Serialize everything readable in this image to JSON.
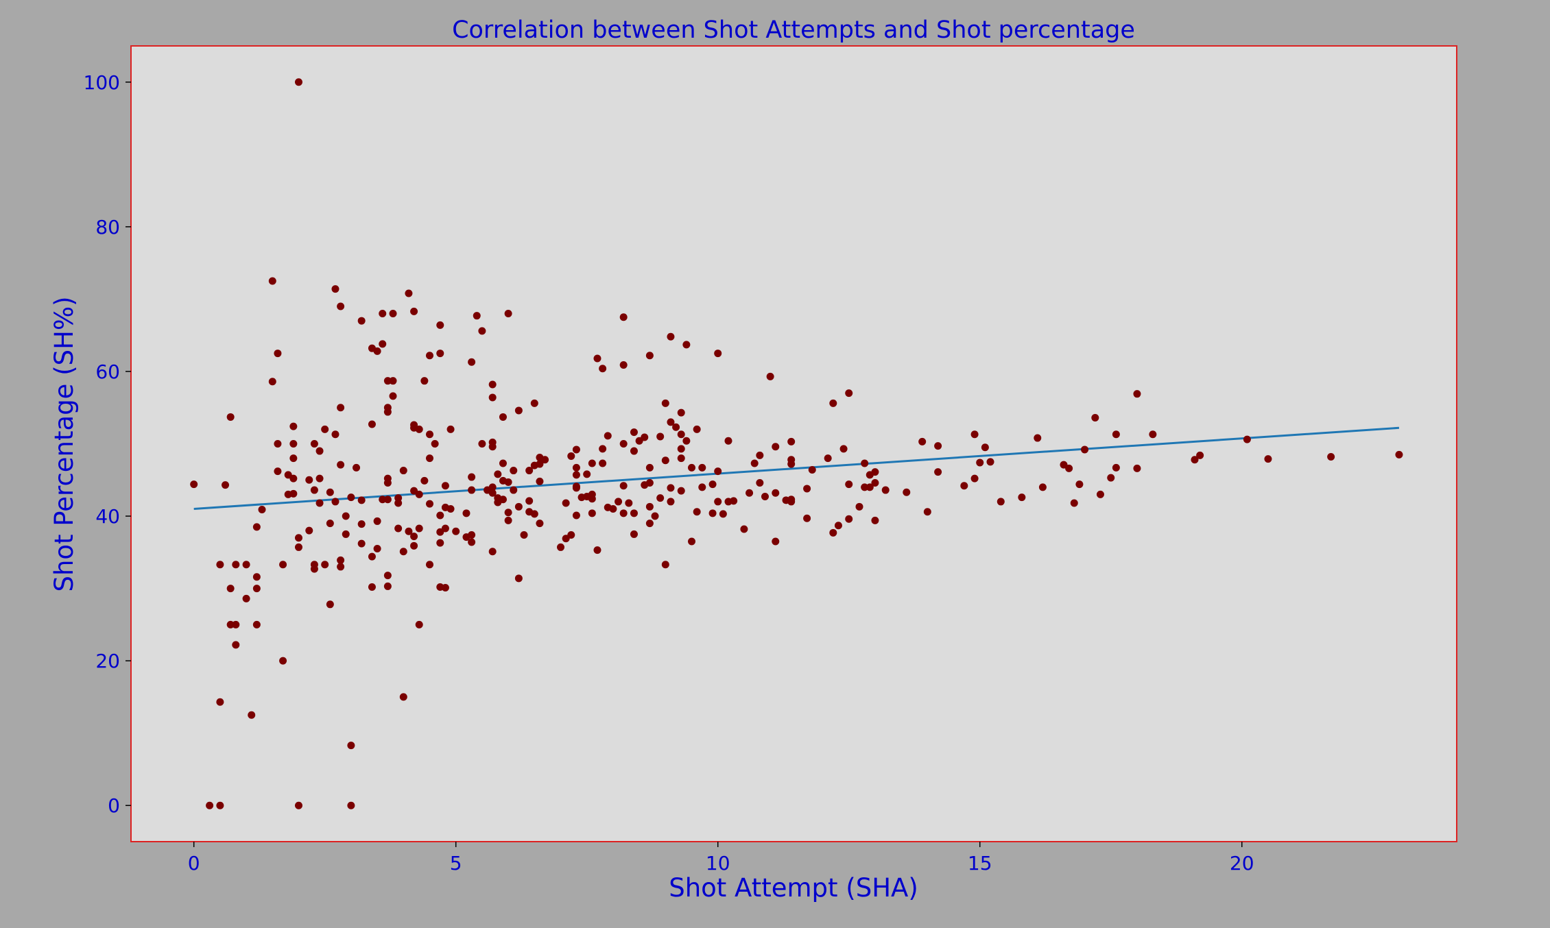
{
  "chart_data": {
    "type": "scatter",
    "title": "Correlation between Shot Attempts and Shot percentage",
    "xlabel": "Shot Attempt (SHA)",
    "ylabel": "Shot Percentage (SH%)",
    "xlim": [
      -1.2,
      24.1
    ],
    "ylim": [
      -5,
      105
    ],
    "xticks": [
      0,
      5,
      10,
      15,
      20
    ],
    "yticks": [
      0,
      20,
      40,
      60,
      80,
      100
    ],
    "grid": false,
    "legend": "none",
    "colors": {
      "background": "#a8a8a8",
      "plot_area": "#dcdcdc",
      "frame": "#dd2222",
      "points": "#7a0000",
      "trend_line": "#1f77b4",
      "text": "#0000cc"
    },
    "trend_line": {
      "x": [
        0,
        23
      ],
      "y": [
        41.0,
        52.2
      ]
    },
    "points": [
      [
        0,
        44.4
      ],
      [
        0.3,
        0
      ],
      [
        0.5,
        0
      ],
      [
        0.5,
        33.3
      ],
      [
        0.5,
        14.3
      ],
      [
        0.6,
        44.3
      ],
      [
        0.7,
        53.7
      ],
      [
        0.7,
        30
      ],
      [
        0.7,
        25
      ],
      [
        0.8,
        22.2
      ],
      [
        0.8,
        25
      ],
      [
        0.8,
        33.3
      ],
      [
        1,
        33.3
      ],
      [
        1,
        28.6
      ],
      [
        1.1,
        12.5
      ],
      [
        1.2,
        38.5
      ],
      [
        1.2,
        31.6
      ],
      [
        1.2,
        30
      ],
      [
        1.2,
        25
      ],
      [
        1.3,
        40.9
      ],
      [
        1.5,
        72.5
      ],
      [
        1.5,
        58.6
      ],
      [
        1.6,
        62.5
      ],
      [
        1.6,
        50
      ],
      [
        1.6,
        46.2
      ],
      [
        1.7,
        33.3
      ],
      [
        1.7,
        20
      ],
      [
        1.8,
        43
      ],
      [
        1.8,
        45.7
      ],
      [
        1.9,
        52.4
      ],
      [
        1.9,
        50
      ],
      [
        1.9,
        48
      ],
      [
        1.9,
        45.2
      ],
      [
        1.9,
        43.1
      ],
      [
        2,
        100
      ],
      [
        2,
        37
      ],
      [
        2,
        35.7
      ],
      [
        2,
        0
      ],
      [
        2.2,
        45
      ],
      [
        2.2,
        38
      ],
      [
        2.3,
        50
      ],
      [
        2.3,
        43.6
      ],
      [
        2.3,
        33.3
      ],
      [
        2.3,
        32.7
      ],
      [
        2.4,
        49
      ],
      [
        2.4,
        45.2
      ],
      [
        2.4,
        41.8
      ],
      [
        2.5,
        52
      ],
      [
        2.5,
        33.3
      ],
      [
        2.6,
        43.3
      ],
      [
        2.6,
        39
      ],
      [
        2.6,
        27.8
      ],
      [
        2.7,
        71.4
      ],
      [
        2.7,
        51.3
      ],
      [
        2.7,
        42
      ],
      [
        2.8,
        69
      ],
      [
        2.8,
        55
      ],
      [
        2.8,
        47.1
      ],
      [
        2.8,
        33.9
      ],
      [
        2.8,
        33
      ],
      [
        2.9,
        40
      ],
      [
        2.9,
        37.5
      ],
      [
        3,
        42.6
      ],
      [
        3,
        8.3
      ],
      [
        3,
        0
      ],
      [
        3.1,
        46.7
      ],
      [
        3.2,
        67
      ],
      [
        3.2,
        42.2
      ],
      [
        3.2,
        36.2
      ],
      [
        3.2,
        38.9
      ],
      [
        3.4,
        63.2
      ],
      [
        3.4,
        52.7
      ],
      [
        3.4,
        34.4
      ],
      [
        3.4,
        30.2
      ],
      [
        3.5,
        62.8
      ],
      [
        3.5,
        39.3
      ],
      [
        3.5,
        35.5
      ],
      [
        3.6,
        68
      ],
      [
        3.6,
        63.8
      ],
      [
        3.6,
        42.3
      ],
      [
        3.7,
        58.7
      ],
      [
        3.7,
        55
      ],
      [
        3.7,
        54.4
      ],
      [
        3.7,
        45.2
      ],
      [
        3.7,
        44.6
      ],
      [
        3.7,
        42.3
      ],
      [
        3.7,
        31.8
      ],
      [
        3.7,
        30.3
      ],
      [
        3.8,
        68
      ],
      [
        3.8,
        58.7
      ],
      [
        3.8,
        56.6
      ],
      [
        3.9,
        42.5
      ],
      [
        3.9,
        41.8
      ],
      [
        3.9,
        38.3
      ],
      [
        4,
        46.3
      ],
      [
        4,
        35.1
      ],
      [
        4,
        15
      ],
      [
        4.1,
        70.8
      ],
      [
        4.1,
        37.9
      ],
      [
        4.2,
        68.3
      ],
      [
        4.2,
        52.6
      ],
      [
        4.2,
        52.2
      ],
      [
        4.2,
        43.5
      ],
      [
        4.2,
        37.2
      ],
      [
        4.2,
        35.9
      ],
      [
        4.3,
        52
      ],
      [
        4.3,
        43
      ],
      [
        4.3,
        38.3
      ],
      [
        4.3,
        25
      ],
      [
        4.4,
        58.7
      ],
      [
        4.4,
        44.9
      ],
      [
        4.5,
        62.2
      ],
      [
        4.5,
        51.3
      ],
      [
        4.5,
        48
      ],
      [
        4.5,
        41.7
      ],
      [
        4.5,
        33.3
      ],
      [
        4.6,
        50
      ],
      [
        4.7,
        66.4
      ],
      [
        4.7,
        62.5
      ],
      [
        4.7,
        40.1
      ],
      [
        4.7,
        37.8
      ],
      [
        4.7,
        36.3
      ],
      [
        4.7,
        30.2
      ],
      [
        4.8,
        44.2
      ],
      [
        4.8,
        41.2
      ],
      [
        4.8,
        38.3
      ],
      [
        4.8,
        30.1
      ],
      [
        4.9,
        52
      ],
      [
        4.9,
        41
      ],
      [
        5,
        37.9
      ],
      [
        5.2,
        40.4
      ],
      [
        5.2,
        37.1
      ],
      [
        5.3,
        61.3
      ],
      [
        5.3,
        45.4
      ],
      [
        5.3,
        43.6
      ],
      [
        5.3,
        37.4
      ],
      [
        5.3,
        36.4
      ],
      [
        5.4,
        67.7
      ],
      [
        5.5,
        65.6
      ],
      [
        5.5,
        50
      ],
      [
        5.6,
        43.6
      ],
      [
        5.7,
        58.2
      ],
      [
        5.7,
        56.4
      ],
      [
        5.7,
        50.2
      ],
      [
        5.7,
        49.6
      ],
      [
        5.7,
        44
      ],
      [
        5.7,
        43.2
      ],
      [
        5.7,
        35.1
      ],
      [
        5.8,
        45.8
      ],
      [
        5.8,
        42.5
      ],
      [
        5.8,
        41.9
      ],
      [
        5.9,
        53.7
      ],
      [
        5.9,
        47.3
      ],
      [
        5.9,
        44.9
      ],
      [
        5.9,
        42.3
      ],
      [
        6,
        68
      ],
      [
        6,
        44.7
      ],
      [
        6,
        40.5
      ],
      [
        6,
        39.4
      ],
      [
        6.1,
        46.3
      ],
      [
        6.1,
        43.6
      ],
      [
        6.2,
        54.6
      ],
      [
        6.2,
        41.3
      ],
      [
        6.2,
        31.4
      ],
      [
        6.3,
        37.4
      ],
      [
        6.4,
        46.3
      ],
      [
        6.4,
        42.1
      ],
      [
        6.4,
        40.6
      ],
      [
        6.5,
        55.6
      ],
      [
        6.5,
        47
      ],
      [
        6.5,
        40.3
      ],
      [
        6.6,
        48.1
      ],
      [
        6.6,
        47.2
      ],
      [
        6.6,
        44.8
      ],
      [
        6.6,
        39
      ],
      [
        6.7,
        47.8
      ],
      [
        7,
        35.7
      ],
      [
        7.1,
        41.8
      ],
      [
        7.1,
        36.9
      ],
      [
        7.2,
        48.3
      ],
      [
        7.2,
        37.4
      ],
      [
        7.3,
        49.2
      ],
      [
        7.3,
        46.7
      ],
      [
        7.3,
        45.7
      ],
      [
        7.3,
        44.1
      ],
      [
        7.3,
        43.9
      ],
      [
        7.3,
        40.1
      ],
      [
        7.4,
        42.6
      ],
      [
        7.5,
        45.8
      ],
      [
        7.5,
        42.7
      ],
      [
        7.6,
        47.3
      ],
      [
        7.6,
        43
      ],
      [
        7.6,
        42.4
      ],
      [
        7.6,
        40.4
      ],
      [
        7.7,
        61.8
      ],
      [
        7.7,
        35.3
      ],
      [
        7.8,
        60.4
      ],
      [
        7.8,
        49.3
      ],
      [
        7.8,
        47.3
      ],
      [
        7.9,
        51.1
      ],
      [
        7.9,
        41.2
      ],
      [
        8,
        41
      ],
      [
        8.1,
        42
      ],
      [
        8.2,
        67.5
      ],
      [
        8.2,
        60.9
      ],
      [
        8.2,
        50
      ],
      [
        8.2,
        44.2
      ],
      [
        8.2,
        40.4
      ],
      [
        8.3,
        41.8
      ],
      [
        8.4,
        51.6
      ],
      [
        8.4,
        49
      ],
      [
        8.4,
        40.4
      ],
      [
        8.4,
        37.5
      ],
      [
        8.5,
        50.4
      ],
      [
        8.6,
        50.9
      ],
      [
        8.6,
        44.3
      ],
      [
        8.7,
        62.2
      ],
      [
        8.7,
        46.7
      ],
      [
        8.7,
        44.6
      ],
      [
        8.7,
        41.3
      ],
      [
        8.7,
        39
      ],
      [
        8.8,
        40
      ],
      [
        8.9,
        51
      ],
      [
        8.9,
        42.5
      ],
      [
        9,
        55.6
      ],
      [
        9,
        47.7
      ],
      [
        9,
        33.3
      ],
      [
        9.1,
        64.8
      ],
      [
        9.1,
        53
      ],
      [
        9.1,
        43.9
      ],
      [
        9.1,
        42
      ],
      [
        9.2,
        52.3
      ],
      [
        9.3,
        54.3
      ],
      [
        9.3,
        51.3
      ],
      [
        9.3,
        49.3
      ],
      [
        9.3,
        48
      ],
      [
        9.3,
        43.5
      ],
      [
        9.4,
        63.7
      ],
      [
        9.4,
        50.4
      ],
      [
        9.5,
        46.7
      ],
      [
        9.5,
        36.5
      ],
      [
        9.6,
        52
      ],
      [
        9.6,
        40.6
      ],
      [
        9.7,
        46.7
      ],
      [
        9.7,
        44
      ],
      [
        9.9,
        44.4
      ],
      [
        9.9,
        40.4
      ],
      [
        10,
        62.5
      ],
      [
        10,
        46.2
      ],
      [
        10,
        42
      ],
      [
        10.1,
        40.3
      ],
      [
        10.2,
        50.4
      ],
      [
        10.2,
        42
      ],
      [
        10.3,
        42.1
      ],
      [
        10.5,
        38.2
      ],
      [
        10.6,
        43.2
      ],
      [
        10.7,
        47.3
      ],
      [
        10.8,
        48.4
      ],
      [
        10.8,
        44.6
      ],
      [
        10.9,
        42.7
      ],
      [
        11,
        59.3
      ],
      [
        11.1,
        49.6
      ],
      [
        11.1,
        43.2
      ],
      [
        11.1,
        36.5
      ],
      [
        11.3,
        42.2
      ],
      [
        11.4,
        50.3
      ],
      [
        11.4,
        47.8
      ],
      [
        11.4,
        47.2
      ],
      [
        11.4,
        42.3
      ],
      [
        11.4,
        42
      ],
      [
        11.7,
        43.8
      ],
      [
        11.7,
        39.7
      ],
      [
        11.8,
        46.4
      ],
      [
        12.1,
        48
      ],
      [
        12.2,
        55.6
      ],
      [
        12.2,
        37.7
      ],
      [
        12.3,
        38.7
      ],
      [
        12.4,
        49.3
      ],
      [
        12.5,
        57
      ],
      [
        12.5,
        44.4
      ],
      [
        12.5,
        39.6
      ],
      [
        12.7,
        41.3
      ],
      [
        12.8,
        47.3
      ],
      [
        12.8,
        44
      ],
      [
        12.9,
        45.7
      ],
      [
        12.9,
        44
      ],
      [
        13,
        46.1
      ],
      [
        13,
        44.6
      ],
      [
        13,
        39.4
      ],
      [
        13.2,
        43.6
      ],
      [
        13.6,
        43.3
      ],
      [
        13.9,
        50.3
      ],
      [
        14,
        40.6
      ],
      [
        14.2,
        49.7
      ],
      [
        14.2,
        46.1
      ],
      [
        14.7,
        44.2
      ],
      [
        14.9,
        51.3
      ],
      [
        14.9,
        45.2
      ],
      [
        15,
        47.4
      ],
      [
        15.1,
        49.5
      ],
      [
        15.2,
        47.5
      ],
      [
        15.4,
        42
      ],
      [
        15.8,
        42.6
      ],
      [
        16.1,
        50.8
      ],
      [
        16.2,
        44
      ],
      [
        16.6,
        47.1
      ],
      [
        16.7,
        46.6
      ],
      [
        16.8,
        41.8
      ],
      [
        16.9,
        44.4
      ],
      [
        17,
        49.2
      ],
      [
        17.2,
        53.6
      ],
      [
        17.3,
        43
      ],
      [
        17.5,
        45.3
      ],
      [
        17.6,
        51.3
      ],
      [
        17.6,
        46.7
      ],
      [
        18,
        56.9
      ],
      [
        18,
        46.6
      ],
      [
        18.3,
        51.3
      ],
      [
        19.1,
        47.8
      ],
      [
        19.2,
        48.4
      ],
      [
        20.1,
        50.6
      ],
      [
        20.5,
        47.9
      ],
      [
        21.7,
        48.2
      ],
      [
        23,
        48.5
      ]
    ]
  }
}
